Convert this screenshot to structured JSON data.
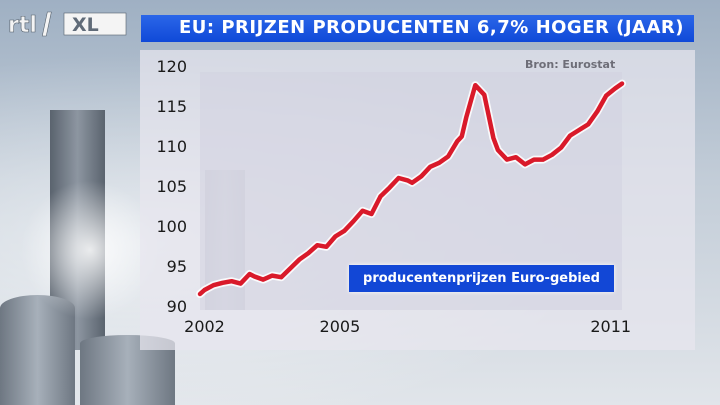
{
  "header": {
    "title": "EU: PRIJZEN PRODUCENTEN 6,7% HOGER (JAAR)",
    "logo_text": "rtl XL",
    "brand_colors": {
      "title_bar": "#1a52e0",
      "logo_accent": "#f2f2f2"
    }
  },
  "chart_data": {
    "type": "line",
    "title": "EU: PRIJZEN PRODUCENTEN 6,7% HOGER (JAAR)",
    "source": "Bron: Eurostat",
    "xlabel": "",
    "ylabel": "",
    "xlim": [
      2001.9,
      2011.25
    ],
    "ylim": [
      90,
      120
    ],
    "yticks": [
      90,
      95,
      100,
      105,
      110,
      115,
      120
    ],
    "xticks": [
      {
        "value": 2002,
        "label": "2002"
      },
      {
        "value": 2005,
        "label": "2005"
      },
      {
        "value": 2011,
        "label": "2011"
      }
    ],
    "grid": false,
    "legend": "bottom-right",
    "series": [
      {
        "name": "producentenprijzen Euro-gebied",
        "color": "#d91a2a",
        "x": [
          2001.9,
          2002.0,
          2002.2,
          2002.4,
          2002.6,
          2002.8,
          2003.0,
          2003.1,
          2003.3,
          2003.5,
          2003.7,
          2003.9,
          2004.1,
          2004.3,
          2004.5,
          2004.7,
          2004.9,
          2005.1,
          2005.3,
          2005.5,
          2005.7,
          2005.9,
          2006.1,
          2006.3,
          2006.5,
          2006.6,
          2006.8,
          2007.0,
          2007.2,
          2007.4,
          2007.6,
          2007.7,
          2007.8,
          2008.0,
          2008.2,
          2008.4,
          2008.5,
          2008.7,
          2008.9,
          2009.1,
          2009.3,
          2009.5,
          2009.7,
          2009.9,
          2010.1,
          2010.3,
          2010.5,
          2010.7,
          2010.9,
          2011.1,
          2011.25
        ],
        "values": [
          91.5,
          92.0,
          92.6,
          92.9,
          93.1,
          92.8,
          94.0,
          93.7,
          93.3,
          93.8,
          93.6,
          94.7,
          95.8,
          96.6,
          97.6,
          97.4,
          98.7,
          99.4,
          100.6,
          101.9,
          101.5,
          103.7,
          104.8,
          106.0,
          105.7,
          105.4,
          106.2,
          107.4,
          107.9,
          108.7,
          110.6,
          111.2,
          113.6,
          117.6,
          116.4,
          111.0,
          109.5,
          108.3,
          108.6,
          107.7,
          108.3,
          108.3,
          108.9,
          109.8,
          111.3,
          112.0,
          112.7,
          114.3,
          116.3,
          117.2,
          117.8
        ]
      }
    ]
  }
}
